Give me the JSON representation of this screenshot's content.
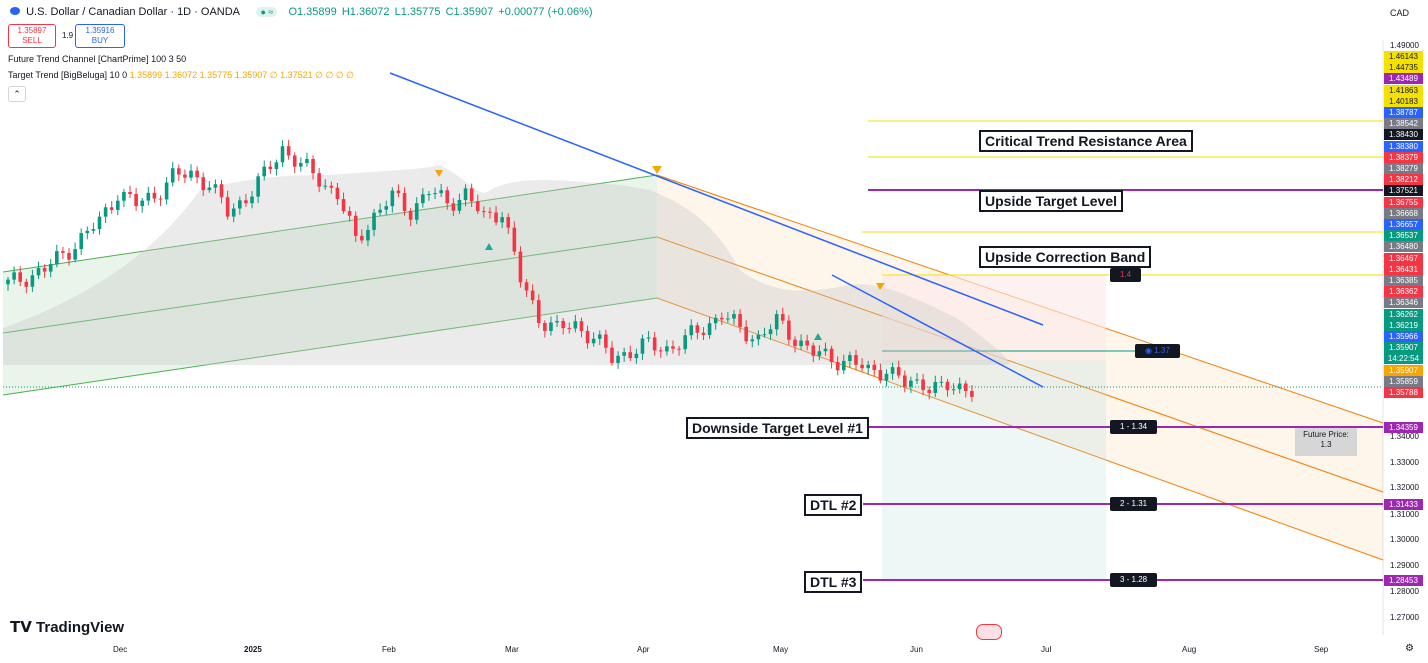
{
  "header": {
    "symbol_title": "U.S. Dollar / Canadian Dollar · 1D · OANDA",
    "ohlc": {
      "o": "O1.35899",
      "h": "H1.36072",
      "l": "L1.35775",
      "c": "C1.35907",
      "chg": "+0.00077 (+0.06%)"
    },
    "sell_price": "1.35897",
    "sell_label": "SELL",
    "spread": "1.9",
    "buy_price": "1.35916",
    "buy_label": "BUY",
    "indicator1": "Future Trend Channel [ChartPrime] 100 3 50",
    "indicator2": "Target Trend [BigBeluga] 10 0",
    "indicator2_values": "1.35899  1.36072  1.35775  1.35907  ∅  1.37521  ∅  ∅  ∅  ∅",
    "currency": "CAD",
    "collapse": "⌃"
  },
  "annotations": {
    "critical": "Critical Trend Resistance Area",
    "upside_target": "Upside Target Level",
    "upside_correction": "Upside Correction Band",
    "downside1": "Downside Target Level #1",
    "dtl2": "DTL #2",
    "dtl3": "DTL #3"
  },
  "tags": {
    "t14": "1.4",
    "t137": "◉ 1.37",
    "t1": "1 - 1.34",
    "t2": "2 - 1.31",
    "t3": "3 - 1.28",
    "future1": "Future Price:",
    "future2": "1.3"
  },
  "price_axis": {
    "ticks": [
      "1.49000",
      "1.34000",
      "1.33000",
      "1.32000",
      "1.31000",
      "1.30000",
      "1.29000",
      "1.28000",
      "1.27000"
    ],
    "labels": [
      {
        "text": "1.46143",
        "color": "#f5e100",
        "dark": true
      },
      {
        "text": "1.44735",
        "color": "#f5e100",
        "dark": true
      },
      {
        "text": "1.43489",
        "color": "#9c27b0"
      },
      {
        "text": "1.41863",
        "color": "#f5e100",
        "dark": true
      },
      {
        "text": "1.40183",
        "color": "#f5e100",
        "dark": true
      },
      {
        "text": "1.38787",
        "color": "#2962ff"
      },
      {
        "text": "1.38542",
        "color": "#787b86"
      },
      {
        "text": "1.38430",
        "color": "#131722"
      },
      {
        "text": "1.38380",
        "color": "#2962ff"
      },
      {
        "text": "1.38379",
        "color": "#f23645"
      },
      {
        "text": "1.38279",
        "color": "#787b86"
      },
      {
        "text": "1.38212",
        "color": "#f23645"
      },
      {
        "text": "1.37521",
        "color": "#131722"
      },
      {
        "text": "1.36755",
        "color": "#f23645"
      },
      {
        "text": "1.36668",
        "color": "#787b86"
      },
      {
        "text": "1.36657",
        "color": "#2962ff"
      },
      {
        "text": "1.36537",
        "color": "#089981"
      },
      {
        "text": "1.36480",
        "color": "#787b86"
      },
      {
        "text": "1.36467",
        "color": "#f23645"
      },
      {
        "text": "1.36431",
        "color": "#f23645"
      },
      {
        "text": "1.36385",
        "color": "#787b86"
      },
      {
        "text": "1.36362",
        "color": "#f23645"
      },
      {
        "text": "1.36346",
        "color": "#787b86"
      },
      {
        "text": "1.36262",
        "color": "#089981"
      },
      {
        "text": "1.36219",
        "color": "#089981"
      },
      {
        "text": "1.35966",
        "color": "#2962ff"
      },
      {
        "text": "1.35907",
        "color": "#089981"
      },
      {
        "text": "14:22:54",
        "color": "#089981"
      },
      {
        "text": "1.35907",
        "color": "#f7a600"
      },
      {
        "text": "1.35859",
        "color": "#787b86"
      },
      {
        "text": "1.35788",
        "color": "#f23645"
      }
    ],
    "level_labels": {
      "l1": "1.34359",
      "l2": "1.31433",
      "l3": "1.28453"
    }
  },
  "time_axis": [
    "Dec",
    "2025",
    "Feb",
    "Mar",
    "Apr",
    "May",
    "Jun",
    "Jul",
    "Aug",
    "Sep"
  ],
  "brand": "TradingView",
  "colors": {
    "up": "#089981",
    "down": "#f23645",
    "channel_up": "#4caf50",
    "channel_down": "#f57c00",
    "trend": "#2962ff",
    "level": "#9c27b0",
    "target": "#f5e100"
  },
  "chart_data": {
    "type": "candlestick",
    "title": "U.S. Dollar / Canadian Dollar · 1D · OANDA",
    "close_path": [
      1.3985,
      1.4015,
      1.404,
      1.41,
      1.416,
      1.4225,
      1.434,
      1.429,
      1.433,
      1.4395,
      1.441,
      1.437,
      1.426,
      1.432,
      1.44,
      1.451,
      1.444,
      1.439,
      1.433,
      1.415,
      1.425,
      1.432,
      1.427,
      1.434,
      1.43,
      1.433,
      1.424,
      1.427,
      1.4,
      1.386,
      1.381,
      1.383,
      1.378,
      1.37,
      1.373,
      1.375,
      1.374,
      1.377,
      1.382,
      1.387,
      1.381,
      1.378,
      1.384,
      1.378,
      1.372,
      1.37,
      1.369,
      1.365,
      1.366,
      1.36,
      1.361,
      1.358,
      1.359
    ]
  }
}
